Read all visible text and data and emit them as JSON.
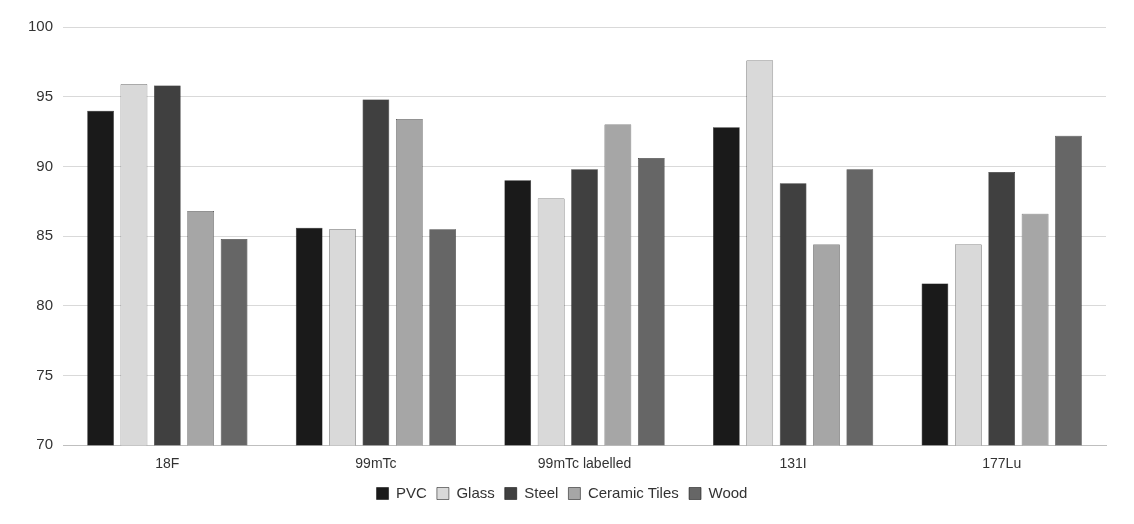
{
  "chart_data": {
    "type": "bar",
    "categories": [
      "18F",
      "99mTc",
      "99mTc labelled",
      "131I",
      "177Lu"
    ],
    "series": [
      {
        "name": "PVC",
        "color": "#1a1a1a",
        "values": [
          94.0,
          85.6,
          89.0,
          92.8,
          81.6
        ]
      },
      {
        "name": "Glass",
        "color": "#d9d9d9",
        "values": [
          95.9,
          85.5,
          87.7,
          97.6,
          84.4
        ]
      },
      {
        "name": "Steel",
        "color": "#404040",
        "values": [
          95.8,
          94.8,
          89.8,
          88.8,
          89.6
        ]
      },
      {
        "name": "Ceramic Tiles",
        "color": "#a6a6a6",
        "values": [
          86.8,
          93.4,
          93.0,
          84.4,
          86.6
        ]
      },
      {
        "name": "Wood",
        "color": "#666666",
        "values": [
          84.8,
          85.5,
          90.6,
          89.8,
          92.2
        ]
      }
    ],
    "ylim": [
      70,
      100
    ],
    "yticks": [
      70,
      75,
      80,
      85,
      90,
      95,
      100
    ],
    "grid": "y",
    "legend": "bottom"
  }
}
